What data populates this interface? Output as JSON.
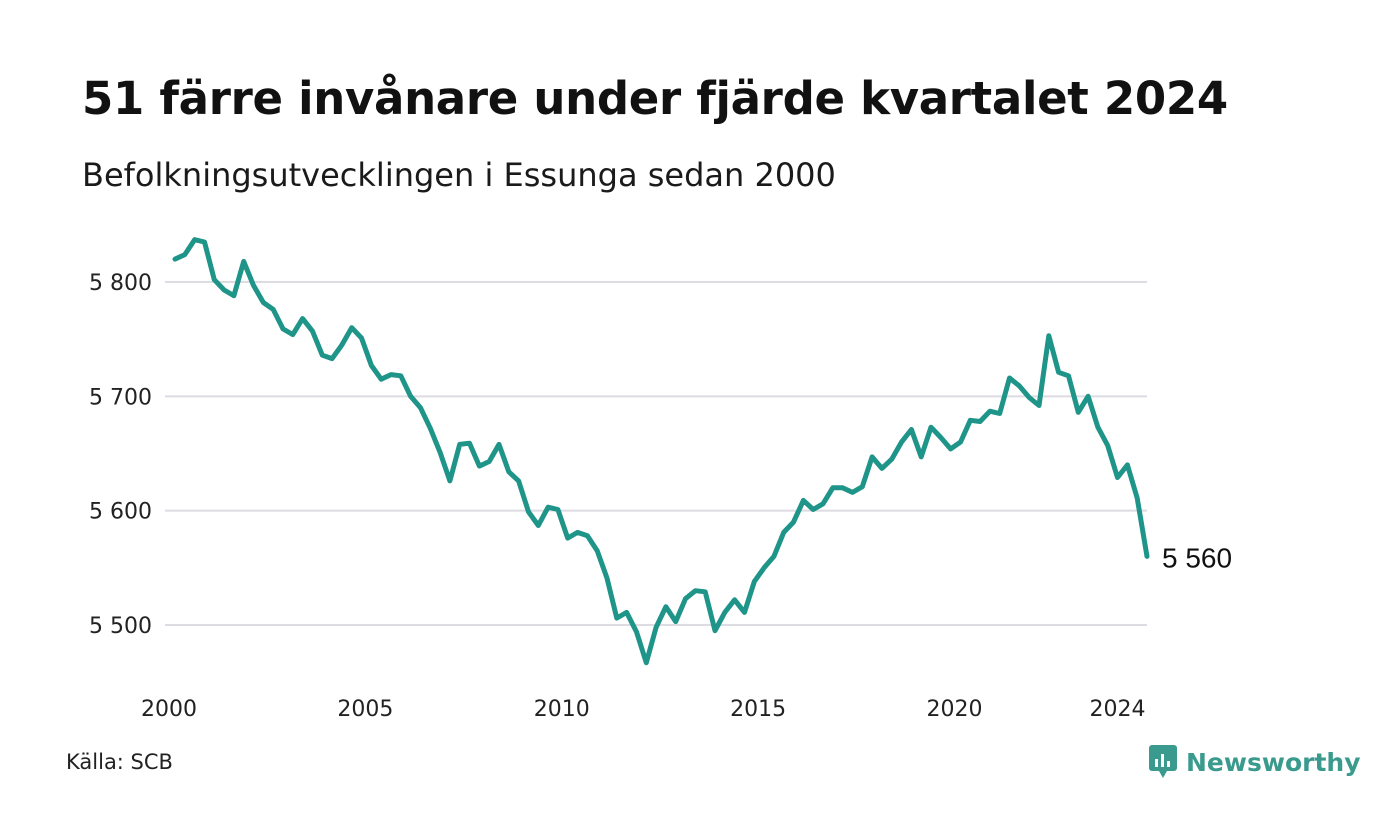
{
  "header": {
    "title": "51 färre invånare under fjärde kvartalet 2024",
    "subtitle": "Befolkningsutvecklingen i Essunga sedan 2000"
  },
  "footer": {
    "source": "Källa: SCB",
    "brand": "Newsworthy"
  },
  "colors": {
    "line": "#1f9488",
    "grid": "#dcdce2",
    "brand": "#3a9a8e"
  },
  "icons": {
    "brand_logo": "newsworthy-logo-icon"
  },
  "chart_data": {
    "type": "line",
    "title": "51 färre invånare under fjärde kvartalet 2024",
    "subtitle": "Befolkningsutvecklingen i Essunga sedan 2000",
    "xlabel": "",
    "ylabel": "",
    "x_ticks": [
      2000,
      2005,
      2010,
      2015,
      2020,
      2024
    ],
    "y_ticks": [
      5500,
      5600,
      5700,
      5800
    ],
    "y_tick_labels": [
      "5 500",
      "5 600",
      "5 700",
      "5 800"
    ],
    "xlim": [
      2000.0,
      2024.75
    ],
    "ylim": [
      5450,
      5850
    ],
    "grid": true,
    "end_label": "5 560",
    "series": [
      {
        "frequency": "quarterly",
        "start": "2000 Q1",
        "values": [
          5820,
          5824,
          5837,
          5835,
          5802,
          5793,
          5788,
          5818,
          5797,
          5782,
          5776,
          5759,
          5754,
          5768,
          5757,
          5736,
          5733,
          5745,
          5760,
          5751,
          5727,
          5715,
          5719,
          5718,
          5700,
          5690,
          5672,
          5651,
          5626,
          5658,
          5659,
          5639,
          5643,
          5658,
          5634,
          5626,
          5599,
          5587,
          5603,
          5601,
          5576,
          5581,
          5578,
          5565,
          5541,
          5506,
          5511,
          5494,
          5467,
          5498,
          5516,
          5503,
          5523,
          5530,
          5529,
          5495,
          5511,
          5522,
          5511,
          5538,
          5550,
          5560,
          5581,
          5590,
          5609,
          5601,
          5606,
          5620,
          5620,
          5616,
          5621,
          5647,
          5637,
          5645,
          5660,
          5671,
          5647,
          5673,
          5664,
          5654,
          5660,
          5679,
          5678,
          5687,
          5685,
          5716,
          5709,
          5699,
          5692,
          5753,
          5721,
          5718,
          5686,
          5700,
          5673,
          5657,
          5629,
          5640,
          5611,
          5560
        ]
      }
    ]
  }
}
